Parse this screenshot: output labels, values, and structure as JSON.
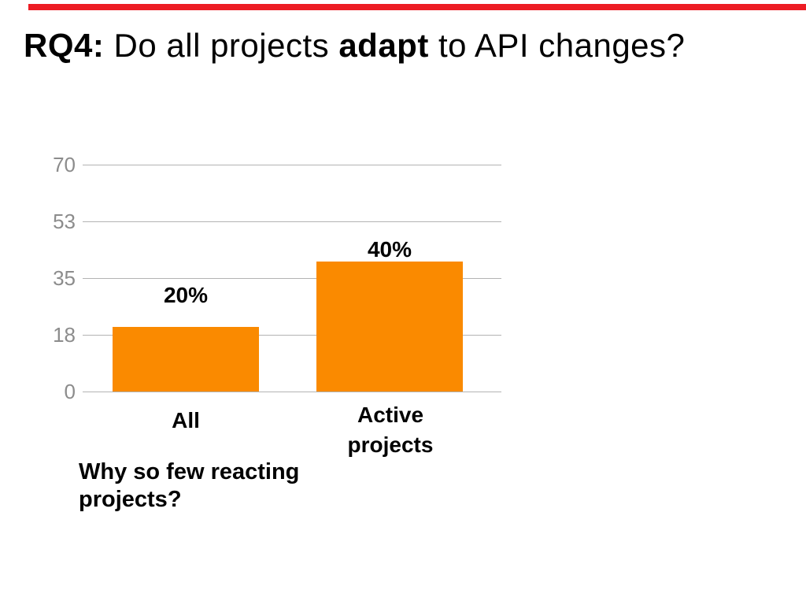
{
  "slide": {
    "title": {
      "part1": "RQ4:",
      "part2": " Do all projects ",
      "part3": "adapt",
      "part4": " to API changes?"
    },
    "question": "Why so few reacting projects?",
    "colors": {
      "accent_red": "#ED1C24",
      "gridline_gray": "#B3B3B3",
      "tick_text_gray": "#8C8C8C"
    }
  },
  "chart_data": {
    "type": "bar",
    "title": "",
    "xlabel": "",
    "ylabel": "",
    "categories": [
      "All",
      "Active projects"
    ],
    "values": [
      20,
      40
    ],
    "data_labels": [
      "20%",
      "40%"
    ],
    "y_ticks": [
      "70",
      "53",
      "35",
      "18",
      "0"
    ],
    "ylim": [
      0,
      70
    ],
    "grid": true,
    "legend": false,
    "bar_color": "#FA8A00"
  }
}
